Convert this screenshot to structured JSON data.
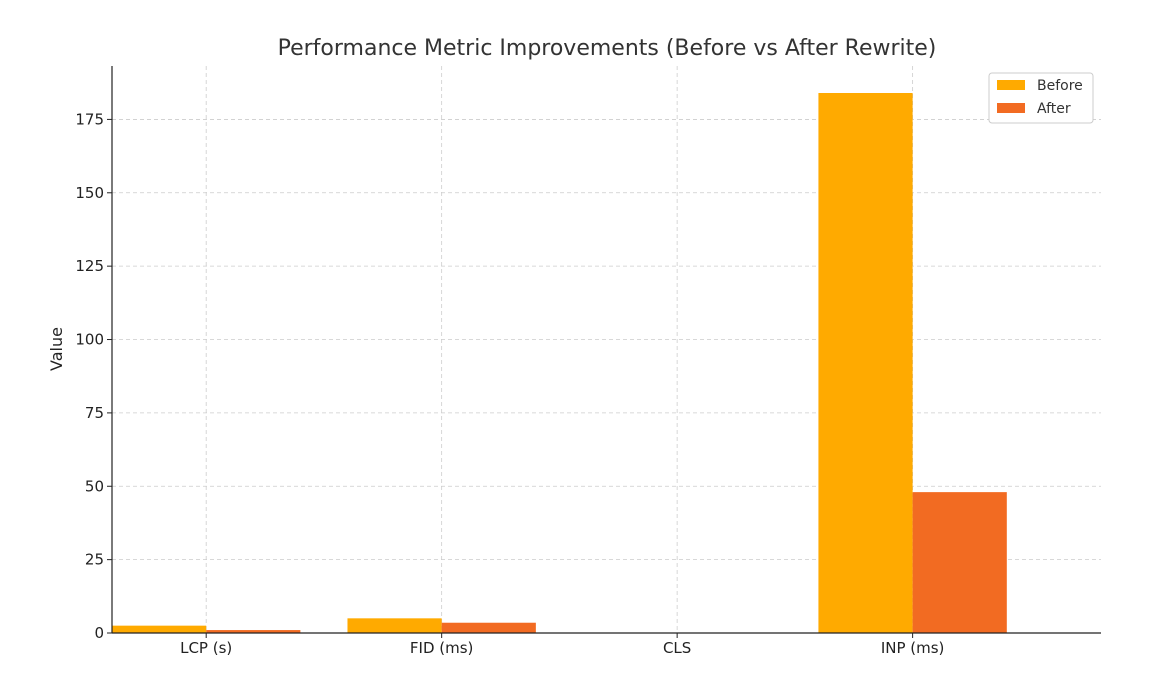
{
  "chart_data": {
    "type": "bar",
    "title": "Performance Metric Improvements (Before vs After Rewrite)",
    "xlabel": "",
    "ylabel": "Value",
    "categories": [
      "LCP (s)",
      "FID (ms)",
      "CLS",
      "INP (ms)"
    ],
    "series": [
      {
        "name": "Before",
        "color": "#FFAA00",
        "values": [
          2.5,
          5.0,
          0.1,
          184
        ]
      },
      {
        "name": "After",
        "color": "#F26B22",
        "values": [
          1.0,
          3.5,
          0.05,
          48
        ]
      }
    ],
    "ylim": [
      0,
      193.2
    ],
    "yticks": [
      0,
      25,
      50,
      75,
      100,
      125,
      150,
      175
    ],
    "grid": true,
    "legend_position": "top-right"
  }
}
